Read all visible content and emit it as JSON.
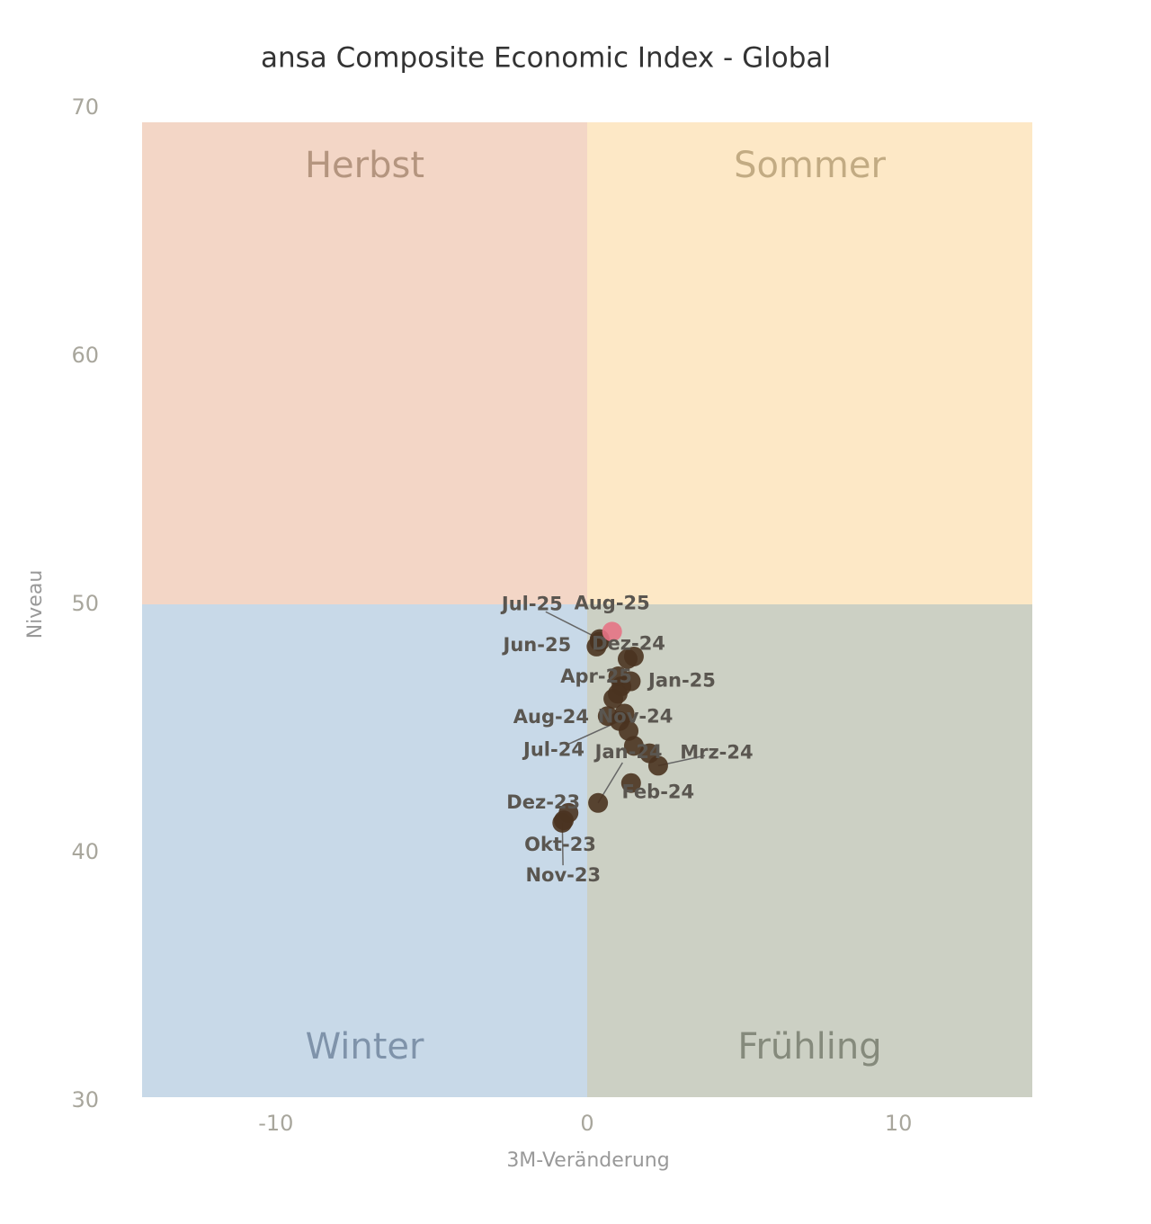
{
  "chart_data": {
    "type": "scatter",
    "title": "ansa Composite Economic Index - Global",
    "x_label": "3M-Veränderung",
    "y_label": "Niveau",
    "xlim": [
      -14.3,
      14.3
    ],
    "ylim": [
      30,
      70
    ],
    "xticks": [
      -10,
      0,
      10
    ],
    "yticks": [
      30,
      40,
      50,
      60,
      70
    ],
    "quadrant_split": {
      "x": 0,
      "y": 50
    },
    "quadrants": [
      {
        "label": "Herbst",
        "color": "#f3d6c6",
        "text_color": "#b4957f"
      },
      {
        "label": "Sommer",
        "color": "#fde8c6",
        "text_color": "#c2ab83"
      },
      {
        "label": "Winter",
        "color": "#c8d9e8",
        "text_color": "#7f93aa"
      },
      {
        "label": "Frühling",
        "color": "#ccd0c4",
        "text_color": "#858a7c"
      }
    ],
    "color": "#4a3320",
    "highlight_color": "#e57385",
    "x": [
      -0.75,
      -0.8,
      -0.6,
      0.35,
      1.41,
      2.28,
      2.0,
      1.5,
      1.33,
      1.04,
      0.66,
      0.84,
      0.98,
      1.2,
      1.3,
      1.4,
      1.5,
      1.0,
      1.1,
      0.4,
      0.3,
      0.4,
      0.8
    ],
    "values": [
      41.3,
      41.2,
      41.6,
      42.0,
      42.8,
      43.5,
      44.0,
      44.3,
      44.9,
      45.3,
      45.5,
      46.2,
      46.4,
      45.6,
      47.8,
      46.9,
      47.9,
      47.1,
      46.7,
      48.5,
      48.3,
      48.6,
      48.9
    ],
    "point_labels": [
      "Okt-23",
      "Nov-23",
      "Dez-23",
      "Jan-24",
      "Feb-24",
      "Mrz-24",
      null,
      null,
      null,
      "Jul-24",
      "Aug-24",
      null,
      null,
      "Nov-24",
      "Dez-24",
      "Jan-25",
      null,
      null,
      "Apr-25",
      null,
      "Jun-25",
      "Jul-25",
      "Aug-25"
    ]
  }
}
